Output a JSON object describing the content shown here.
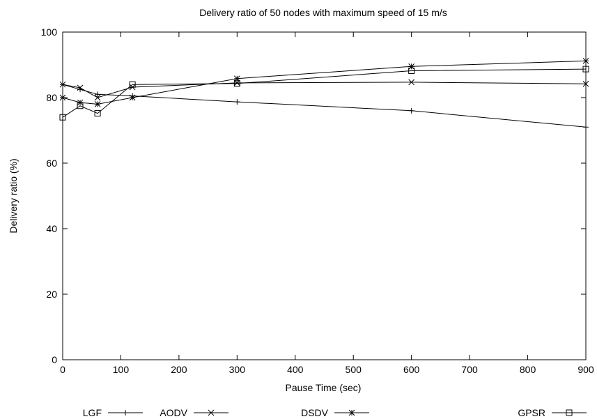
{
  "chart_data": {
    "type": "line",
    "title": "Delivery ratio of 50 nodes with maximum speed of 15 m/s",
    "xlabel": "Pause Time (sec)",
    "ylabel": "Delivery ratio (%)",
    "xlim": [
      0,
      900
    ],
    "ylim": [
      0,
      100
    ],
    "xticks": [
      0,
      100,
      200,
      300,
      400,
      500,
      600,
      700,
      800,
      900
    ],
    "yticks": [
      0,
      20,
      40,
      60,
      80,
      100
    ],
    "grid": false,
    "legend_position": "bottom",
    "x": [
      0,
      30,
      60,
      120,
      300,
      600,
      900
    ],
    "series": [
      {
        "name": "LGF",
        "marker": "plus",
        "values": [
          84,
          82.5,
          81,
          80.5,
          78.7,
          76,
          71
        ]
      },
      {
        "name": "AODV",
        "marker": "cross",
        "values": [
          84,
          83,
          80,
          83.2,
          84.5,
          84.7,
          84.2
        ]
      },
      {
        "name": "DSDV",
        "marker": "star",
        "values": [
          80,
          78.5,
          78,
          80,
          85.8,
          89.5,
          91.2
        ]
      },
      {
        "name": "GPSR",
        "marker": "square",
        "values": [
          74,
          77.5,
          75.2,
          84,
          84.3,
          88.2,
          88.7
        ]
      }
    ]
  }
}
